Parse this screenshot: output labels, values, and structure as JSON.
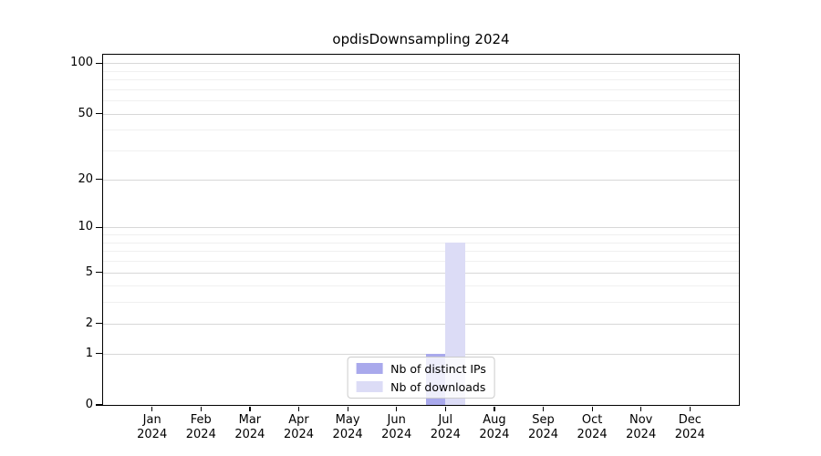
{
  "chart_data": {
    "type": "bar",
    "title": "opdisDownsampling 2024",
    "categories": [
      "Jan",
      "Feb",
      "Mar",
      "Apr",
      "May",
      "Jun",
      "Jul",
      "Aug",
      "Sep",
      "Oct",
      "Nov",
      "Dec"
    ],
    "category_year": "2024",
    "series": [
      {
        "name": "Nb of distinct IPs",
        "color": "#a9a9ec",
        "values": [
          0,
          0,
          0,
          0,
          0,
          0,
          1,
          0,
          0,
          0,
          0,
          0
        ]
      },
      {
        "name": "Nb of downloads",
        "color": "#dcdcf6",
        "values": [
          0,
          0,
          0,
          0,
          0,
          0,
          8,
          0,
          0,
          0,
          0,
          0
        ]
      }
    ],
    "xlabel": "",
    "ylabel": "",
    "y_axis": {
      "scale": "log10(value+1)",
      "major_ticks": [
        0,
        1,
        2,
        5,
        10,
        20,
        50,
        100
      ],
      "minor_gridlines": [
        3,
        4,
        6,
        7,
        8,
        9,
        30,
        40,
        60,
        70,
        80,
        90
      ],
      "ylim": [
        0,
        112
      ]
    },
    "grid": "horizontal",
    "legend_position": "bottom-center-inside"
  },
  "colors": {
    "background": "#ffffff",
    "axis": "#000000",
    "major_gridline": "#d8d8d8",
    "minor_gridline": "#f0f0f0",
    "legend_border": "#cccccc",
    "legend_background": "rgba(255,255,255,0.8)"
  }
}
